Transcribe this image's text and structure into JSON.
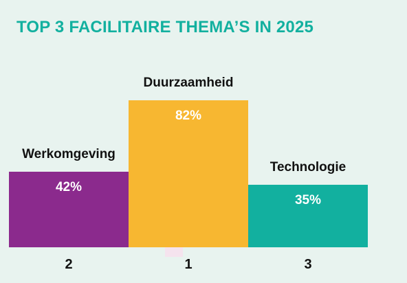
{
  "title": "TOP 3 FACILITAIRE THEMA’S IN 2025",
  "chart_data": {
    "type": "bar",
    "title": "TOP 3 FACILITAIRE THEMA’S IN 2025",
    "categories": [
      "Werkomgeving",
      "Duurzaamheid",
      "Technologie"
    ],
    "values": [
      42,
      82,
      35
    ],
    "value_labels": [
      "42%",
      "82%",
      "35%"
    ],
    "ranks": [
      "2",
      "1",
      "3"
    ],
    "colors": [
      "#8b2a8d",
      "#f7b731",
      "#12b09f"
    ],
    "ylim": [
      0,
      82
    ],
    "grid": false,
    "legend": "none"
  }
}
